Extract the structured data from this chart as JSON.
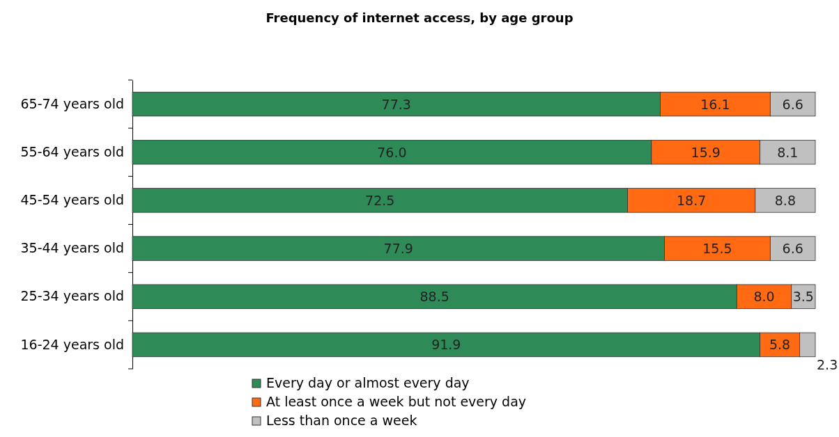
{
  "chart_data": {
    "type": "bar",
    "orientation": "horizontal",
    "stacked": true,
    "title": "Frequency of internet access, by age group",
    "categories": [
      "65-74 years old",
      "55-64 years old",
      "45-54 years old",
      "35-44 years old",
      "25-34 years old",
      "16-24 years old"
    ],
    "series": [
      {
        "name": "Every day or almost every day",
        "color": "#2e8b57",
        "values": [
          77.3,
          76.0,
          72.5,
          77.9,
          88.5,
          91.9
        ],
        "value_labels": [
          "77.3",
          "76.0",
          "72.5",
          "77.9",
          "88.5",
          "91.9"
        ]
      },
      {
        "name": "At least once a week but not every day",
        "color": "#ff6a13",
        "values": [
          16.1,
          15.9,
          18.7,
          15.5,
          8.0,
          5.8
        ],
        "value_labels": [
          "16.1",
          "15.9",
          "18.7",
          "15.5",
          "8.0",
          "5.8"
        ]
      },
      {
        "name": "Less than once a week",
        "color": "#c0c0c0",
        "values": [
          6.6,
          8.1,
          8.8,
          6.6,
          3.5,
          2.3
        ],
        "value_labels": [
          "6.6",
          "8.1",
          "8.8",
          "6.6",
          "3.5",
          "2.3"
        ]
      }
    ],
    "xlim": [
      0,
      100
    ],
    "tick_labels": "y",
    "legend": "bottom"
  }
}
